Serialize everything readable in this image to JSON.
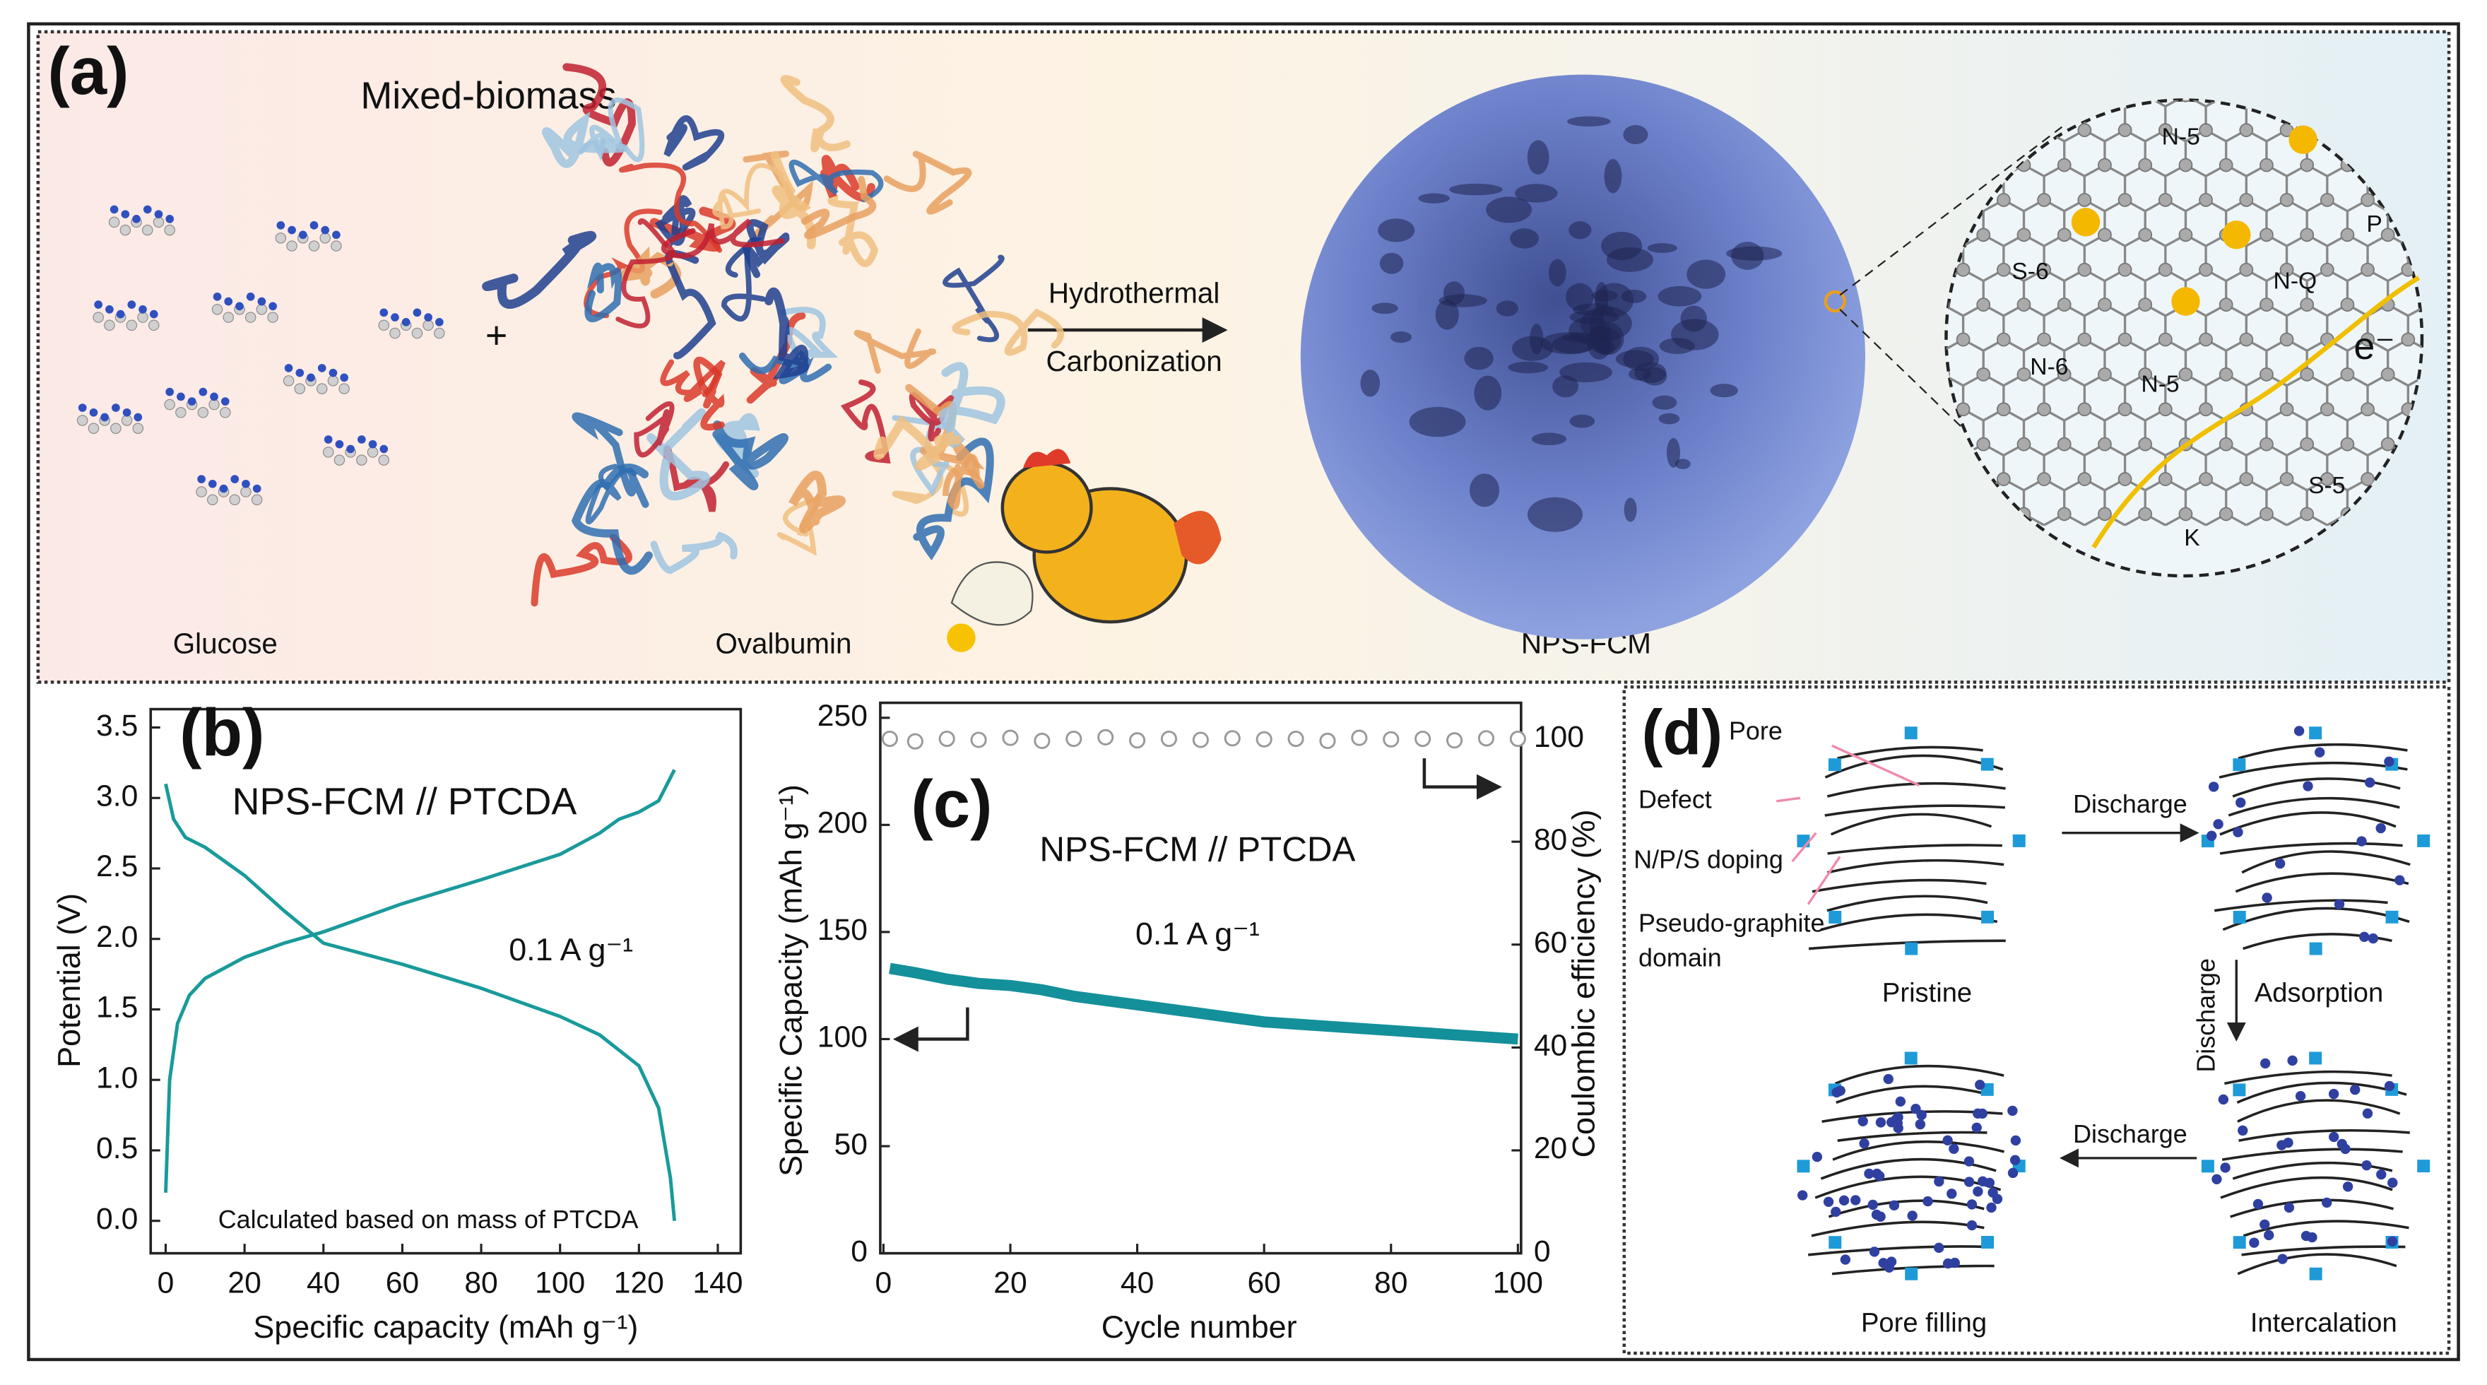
{
  "panel_a": {
    "label": "(a)",
    "title": "Mixed-biomass",
    "plus": "+",
    "glucose": "Glucose",
    "ovalbumin": "Ovalbumin",
    "arrow_top": "Hydrothermal",
    "arrow_bottom": "Carbonization",
    "product": "NPS-FCM",
    "lattice_labels": [
      "N-5",
      "P",
      "S-6",
      "N-Q",
      "N-6",
      "N-5",
      "S-5",
      "K",
      "e⁻"
    ]
  },
  "panel_d": {
    "label": "(d)",
    "annotations": [
      "Pore",
      "Defect",
      "N/P/S doping",
      "Pseudo-graphite",
      "domain"
    ],
    "states": [
      "Pristine",
      "Adsorption",
      "Intercalation",
      "Pore filling"
    ],
    "arrows": [
      "Discharge",
      "Discharge",
      "Discharge"
    ]
  },
  "chart_data": [
    {
      "type": "line",
      "panel_label": "(b)",
      "annotations": [
        "NPS-FCM // PTCDA",
        "0.1 A g⁻¹",
        "Calculated based on mass of PTCDA"
      ],
      "x_label": "Specific capacity (mAh g⁻¹)",
      "y_label": "Potential (V)",
      "xlim": [
        -3,
        145
      ],
      "ylim": [
        -0.23,
        3.63
      ],
      "xticks": [
        0,
        20,
        40,
        60,
        80,
        100,
        120,
        140
      ],
      "yticks": [
        {
          "value": 0,
          "label": "0.0"
        },
        0.5,
        {
          "value": 1,
          "label": "1.0"
        },
        1.5,
        {
          "value": 2,
          "label": "2.0"
        },
        2.5,
        {
          "value": 3,
          "label": "3.0"
        },
        3.5
      ],
      "series": [
        {
          "color": "#1a9a9a",
          "x": [
            0,
            2,
            5,
            10,
            20,
            30,
            40,
            60,
            80,
            100,
            110,
            120,
            125,
            128,
            129
          ],
          "values": [
            3.1,
            2.85,
            2.72,
            2.65,
            2.45,
            2.2,
            1.97,
            1.82,
            1.65,
            1.45,
            1.32,
            1.1,
            0.8,
            0.3,
            0.0
          ]
        },
        {
          "color": "#1a9a9a",
          "x": [
            0,
            1,
            3,
            6,
            10,
            20,
            30,
            40,
            60,
            80,
            100,
            110,
            115,
            120,
            125,
            129
          ],
          "values": [
            0.2,
            1.0,
            1.4,
            1.6,
            1.72,
            1.87,
            1.97,
            2.05,
            2.25,
            2.42,
            2.6,
            2.75,
            2.85,
            2.9,
            2.98,
            3.2
          ]
        }
      ]
    },
    {
      "type": "line",
      "panel_label": "(c)",
      "annotations": [
        "NPS-FCM // PTCDA",
        "0.1 A g⁻¹"
      ],
      "x_label": "Cycle number",
      "y_label": "Specific Capacity (mAh g⁻¹)",
      "y2_label": "Coulombic  efficiency (%)",
      "xlim": [
        0,
        100
      ],
      "ylim": [
        0,
        257
      ],
      "y2lim": [
        0,
        107
      ],
      "xticks": [
        0,
        20,
        40,
        60,
        80,
        100
      ],
      "yticks": [
        0,
        50,
        100,
        150,
        200,
        250
      ],
      "y2ticks": [
        0,
        20,
        40,
        60,
        80,
        100
      ],
      "series": [
        {
          "color": "#14909a",
          "x": [
            1,
            5,
            10,
            15,
            20,
            25,
            30,
            35,
            40,
            45,
            50,
            55,
            60,
            65,
            70,
            75,
            80,
            85,
            90,
            95,
            100
          ],
          "values": [
            133,
            131,
            128,
            126,
            125,
            123,
            120,
            118,
            116,
            114,
            112,
            110,
            108,
            107,
            106,
            105,
            104,
            103,
            102,
            101,
            100
          ]
        },
        {
          "color": "#999999",
          "marker": "open-circle",
          "axis": "y2",
          "x": [
            1,
            5,
            10,
            15,
            20,
            25,
            30,
            35,
            40,
            45,
            50,
            55,
            60,
            65,
            70,
            75,
            80,
            85,
            90,
            95,
            100
          ],
          "values": [
            100,
            99.5,
            100,
            99.8,
            100.2,
            99.6,
            100,
            100.3,
            99.7,
            100,
            99.8,
            100.1,
            99.9,
            100,
            99.6,
            100.2,
            99.9,
            100,
            99.7,
            100.1,
            100
          ]
        }
      ]
    }
  ]
}
